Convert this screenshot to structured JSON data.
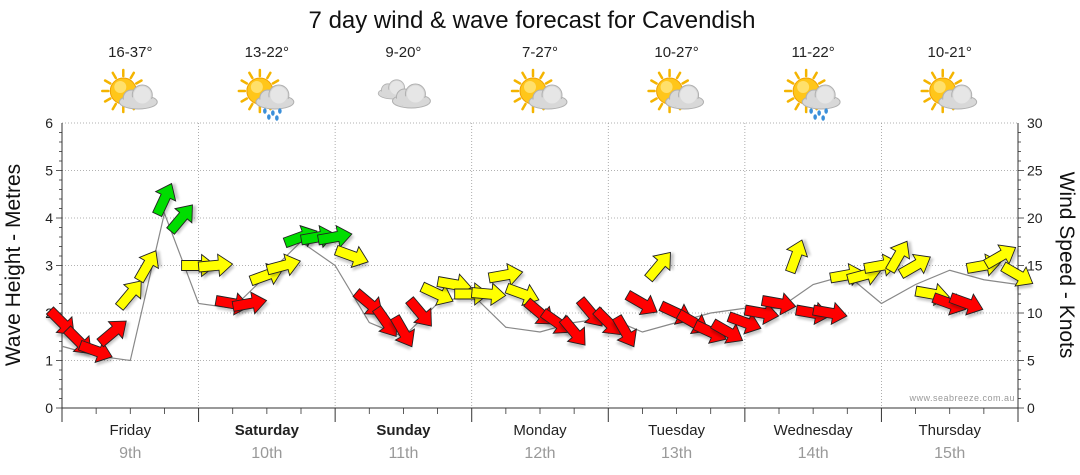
{
  "title": "7 day wind & wave forecast for Cavendish",
  "credit": "www.seabreeze.com.au",
  "colors": {
    "light": "#ff0000",
    "moderate": "#ffff00",
    "fresh": "#00dd00",
    "wave_line": "#888888",
    "grid": "#999999",
    "date_text": "#999999"
  },
  "days": [
    {
      "name": "Friday",
      "date": "9th",
      "temp": "16-37°",
      "icon": "sun-cloud-icon",
      "bold": false
    },
    {
      "name": "Saturday",
      "date": "10th",
      "temp": "13-22°",
      "icon": "sun-cloud-rain-icon",
      "bold": true
    },
    {
      "name": "Sunday",
      "date": "11th",
      "temp": "9-20°",
      "icon": "cloud-icon",
      "bold": true
    },
    {
      "name": "Monday",
      "date": "12th",
      "temp": "7-27°",
      "icon": "sun-cloud-icon",
      "bold": false
    },
    {
      "name": "Tuesday",
      "date": "13th",
      "temp": "10-27°",
      "icon": "sun-cloud-icon",
      "bold": false
    },
    {
      "name": "Wednesday",
      "date": "14th",
      "temp": "11-22°",
      "icon": "sun-cloud-rain-icon",
      "bold": false
    },
    {
      "name": "Thursday",
      "date": "15th",
      "temp": "10-21°",
      "icon": "sun-cloud-icon",
      "bold": false
    }
  ],
  "chart_data": {
    "type": "line",
    "ylabel": "Wave Height - Metres",
    "y2label": "Wind Speed - Knots",
    "ylim": [
      0,
      6
    ],
    "y2lim": [
      0,
      30
    ],
    "yticks": [
      0,
      1,
      2,
      3,
      4,
      5,
      6
    ],
    "y2ticks": [
      0,
      5,
      10,
      15,
      20,
      25,
      30
    ],
    "grid": true,
    "x_unit": "hours from Friday 00:00",
    "wave_height": {
      "x": [
        0,
        6,
        12,
        18,
        24,
        30,
        36,
        42,
        48,
        54,
        60,
        66,
        72,
        78,
        84,
        90,
        96,
        102,
        108,
        114,
        120,
        126,
        132,
        138,
        144,
        150,
        156,
        162,
        168
      ],
      "y": [
        1.3,
        1.1,
        1.0,
        4.1,
        2.2,
        2.1,
        2.8,
        3.5,
        3.0,
        1.8,
        1.5,
        2.2,
        2.4,
        1.7,
        1.6,
        1.8,
        1.9,
        1.6,
        1.8,
        2.0,
        2.1,
        2.1,
        2.6,
        2.8,
        2.2,
        2.6,
        2.9,
        2.7,
        2.6
      ]
    },
    "wind": {
      "x": [
        0,
        3,
        6,
        9,
        12,
        15,
        18,
        21,
        24,
        27,
        30,
        33,
        36,
        39,
        42,
        45,
        48,
        51,
        54,
        57,
        60,
        63,
        66,
        69,
        72,
        75,
        78,
        81,
        84,
        87,
        90,
        93,
        96,
        99,
        102,
        105,
        108,
        111,
        114,
        117,
        120,
        123,
        126,
        129,
        132,
        135,
        138,
        141,
        144,
        147,
        150,
        153,
        156,
        159,
        162,
        165,
        168
      ],
      "speed_knots": [
        9,
        7,
        6,
        8,
        12,
        15,
        22,
        20,
        15,
        15,
        11,
        11,
        14,
        15,
        18,
        18,
        18,
        16,
        11,
        9,
        8,
        10,
        12,
        13,
        12,
        12,
        14,
        12,
        10,
        9,
        8,
        10,
        9,
        8,
        11,
        15,
        10,
        9,
        8,
        8,
        9,
        10,
        11,
        16,
        10,
        10,
        14,
        14,
        15,
        16,
        15,
        12,
        11,
        11,
        15,
        16,
        14
      ],
      "bearing_to_deg": [
        135,
        135,
        110,
        50,
        40,
        30,
        25,
        40,
        90,
        85,
        100,
        80,
        70,
        75,
        70,
        80,
        80,
        110,
        130,
        145,
        150,
        140,
        115,
        100,
        90,
        95,
        80,
        110,
        130,
        125,
        140,
        140,
        135,
        150,
        120,
        40,
        115,
        120,
        115,
        120,
        110,
        100,
        100,
        20,
        100,
        100,
        80,
        75,
        80,
        30,
        60,
        100,
        110,
        110,
        80,
        60,
        120
      ],
      "knots_thresholds": {
        "moderate": 12,
        "fresh": 17
      }
    }
  }
}
